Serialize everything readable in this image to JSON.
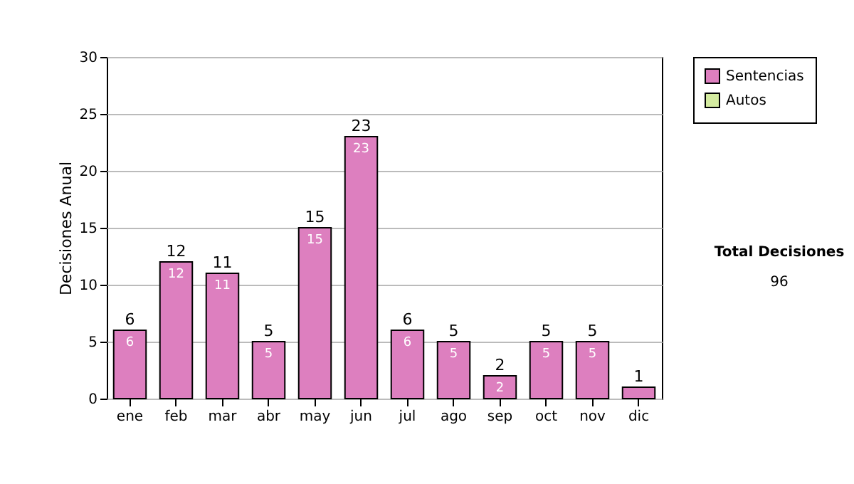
{
  "chart_data": {
    "type": "bar",
    "ylabel": "Decisiones Anual",
    "categories": [
      "ene",
      "feb",
      "mar",
      "abr",
      "may",
      "jun",
      "jul",
      "ago",
      "sep",
      "oct",
      "nov",
      "dic"
    ],
    "series": [
      {
        "name": "Sentencias",
        "color": "#dd7fbf",
        "values": [
          6,
          12,
          11,
          5,
          15,
          23,
          6,
          5,
          2,
          5,
          5,
          1
        ],
        "value_labels": [
          "6",
          "12",
          "11",
          "5",
          "15",
          "23",
          "6",
          "5",
          "2",
          "5",
          "5",
          null
        ]
      },
      {
        "name": "Autos",
        "color": "#d4eba0",
        "values": [
          null,
          null,
          null,
          null,
          null,
          null,
          null,
          null,
          null,
          null,
          null,
          null
        ]
      }
    ],
    "totals": [
      "6",
      "12",
      "11",
      "5",
      "15",
      "23",
      "6",
      "5",
      "2",
      "5",
      "5",
      "1"
    ],
    "ylim": [
      0,
      30
    ],
    "yticks": [
      0,
      5,
      10,
      15,
      20,
      25,
      30
    ],
    "grid": "y",
    "legend": "right",
    "annotations": [
      "Total Decisiones",
      "96"
    ]
  }
}
